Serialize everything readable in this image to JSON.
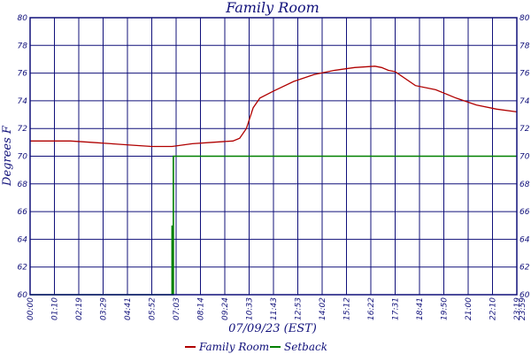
{
  "chart_data": {
    "type": "line",
    "title": "Family Room",
    "xlabel": "07/09/23 (EST)",
    "ylabel": "Degrees F",
    "ylim": [
      60,
      80
    ],
    "yticks": [
      60,
      62,
      64,
      66,
      68,
      70,
      72,
      74,
      76,
      78,
      80
    ],
    "xticks": [
      "00:00",
      "01:10",
      "02:19",
      "03:29",
      "04:41",
      "05:52",
      "07:03",
      "08:14",
      "09:24",
      "10:33",
      "11:43",
      "12:53",
      "14:02",
      "15:12",
      "16:22",
      "17:31",
      "18:41",
      "19:50",
      "21:00",
      "22:10",
      "23:19",
      "23:59"
    ],
    "x_unit": "minutes since midnight",
    "xlim": [
      0,
      1440
    ],
    "grid": true,
    "legend_position": "bottom",
    "colors": {
      "axis": "#10107a",
      "grid": "#10107a",
      "family_room": "#b00000",
      "setback": "#008000"
    },
    "series": [
      {
        "name": "Family Room",
        "color": "#b00000",
        "x": [
          0,
          60,
          120,
          180,
          240,
          300,
          360,
          420,
          480,
          540,
          600,
          620,
          640,
          660,
          680,
          720,
          780,
          840,
          900,
          960,
          1020,
          1040,
          1060,
          1080,
          1140,
          1200,
          1260,
          1320,
          1380,
          1440
        ],
        "y": [
          71.1,
          71.1,
          71.1,
          71.0,
          70.9,
          70.8,
          70.7,
          70.7,
          70.9,
          71.0,
          71.1,
          71.3,
          72.0,
          73.5,
          74.2,
          74.7,
          75.4,
          75.9,
          76.2,
          76.4,
          76.5,
          76.4,
          76.2,
          76.1,
          75.1,
          74.8,
          74.2,
          73.7,
          73.4,
          73.2
        ]
      },
      {
        "name": "Setback",
        "color": "#008000",
        "x": [
          0,
          420,
          420,
          420,
          424,
          1440
        ],
        "y": [
          60,
          60,
          65,
          60,
          70,
          70
        ]
      }
    ]
  }
}
